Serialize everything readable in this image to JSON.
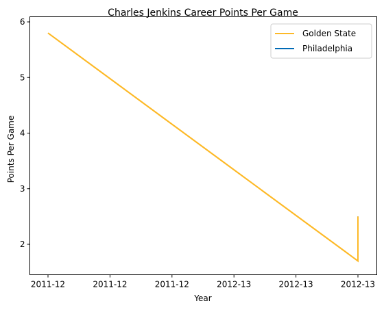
{
  "chart_data": {
    "type": "line",
    "title": "Charles Jenkins  Career Points Per Game",
    "xlabel": "Year",
    "ylabel": "Points Per Game",
    "x_tick_labels": [
      "2011-12",
      "2011-12",
      "2011-12",
      "2012-13",
      "2012-13",
      "2012-13"
    ],
    "ylim": [
      1.5,
      6.0
    ],
    "y_ticks": [
      2,
      3,
      4,
      5,
      6
    ],
    "grid": false,
    "legend_position": "top-right",
    "series": [
      {
        "name": "Golden State",
        "color": "#FDB927",
        "points": [
          {
            "x": "2011-12",
            "y": 5.8
          },
          {
            "x": "2012-13",
            "y": 1.7
          },
          {
            "x": "2012-13",
            "y": 2.5
          }
        ]
      },
      {
        "name": "Philadelphia",
        "color": "#006BB6",
        "points": [
          {
            "x": "2012-13",
            "y": 1.7
          },
          {
            "x": "2012-13",
            "y": 2.5
          }
        ]
      }
    ]
  }
}
